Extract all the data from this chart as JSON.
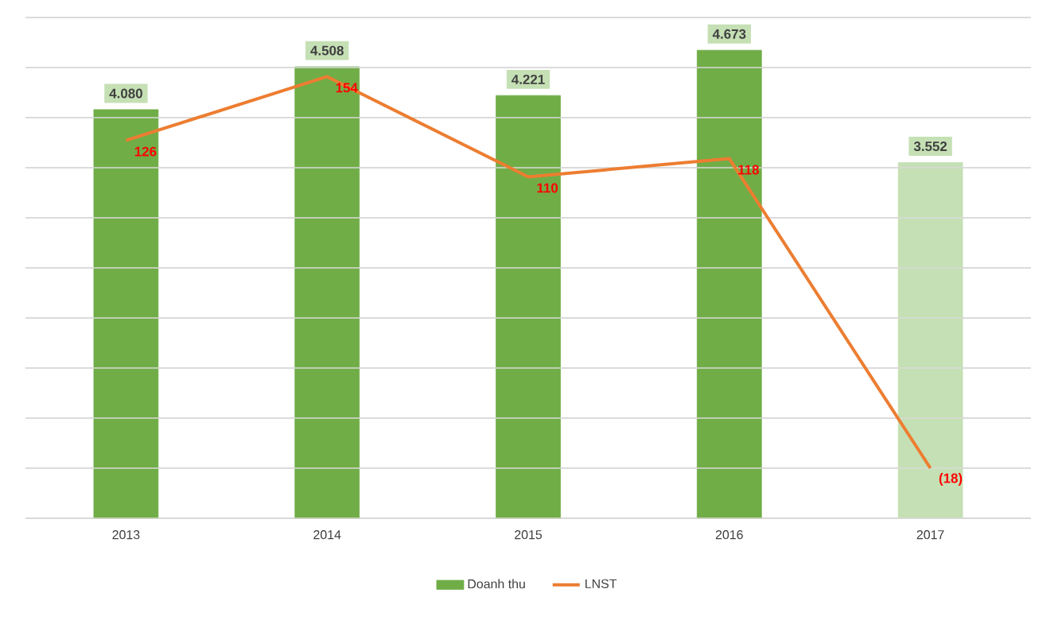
{
  "chart_data": {
    "type": "bar",
    "categories": [
      "2013",
      "2014",
      "2015",
      "2016",
      "2017"
    ],
    "series": [
      {
        "name": "Doanh thu",
        "colors": [
          "#70ad47",
          "#70ad47",
          "#70ad47",
          "#70ad47",
          "#c5e0b4"
        ],
        "values": [
          4080,
          4508,
          4221,
          4673,
          3552
        ],
        "value_labels": [
          "4.080",
          "4.508",
          "4.221",
          "4.673",
          "3.552"
        ]
      },
      {
        "name": "LNST",
        "type": "line",
        "axis": "y2",
        "color": "#ed7d31",
        "values": [
          126,
          154,
          110,
          118,
          -18
        ],
        "value_labels": [
          "126",
          "154",
          "110",
          "118",
          "(18)"
        ]
      }
    ],
    "ylim": [
      0,
      5000
    ],
    "yticks": [
      {
        "value": 0,
        "label": null
      },
      {
        "value": 500,
        "label": null
      },
      {
        "value": 1000,
        "label": null
      },
      {
        "value": 1500,
        "label": null
      },
      {
        "value": 2000,
        "label": null
      },
      {
        "value": 2500,
        "label": null
      },
      {
        "value": 3000,
        "label": null
      },
      {
        "value": 3500,
        "label": null
      },
      {
        "value": 4000,
        "label": null
      },
      {
        "value": 4500,
        "label": null
      },
      {
        "value": 5000,
        "label": null
      }
    ],
    "y2lim": [
      -40,
      180
    ],
    "y2ticks": [
      {
        "value": -40,
        "label": null
      },
      {
        "value": -18,
        "label": null
      },
      {
        "value": 4,
        "label": null
      },
      {
        "value": 26,
        "label": null
      },
      {
        "value": 48,
        "label": null
      },
      {
        "value": 70,
        "label": null
      },
      {
        "value": 92,
        "label": null
      },
      {
        "value": 114,
        "label": null
      },
      {
        "value": 136,
        "label": null
      },
      {
        "value": 158,
        "label": null
      },
      {
        "value": 180,
        "label": null
      }
    ],
    "grid": "y",
    "legend": "bottom",
    "tick_labels": "x",
    "marker": "none"
  }
}
